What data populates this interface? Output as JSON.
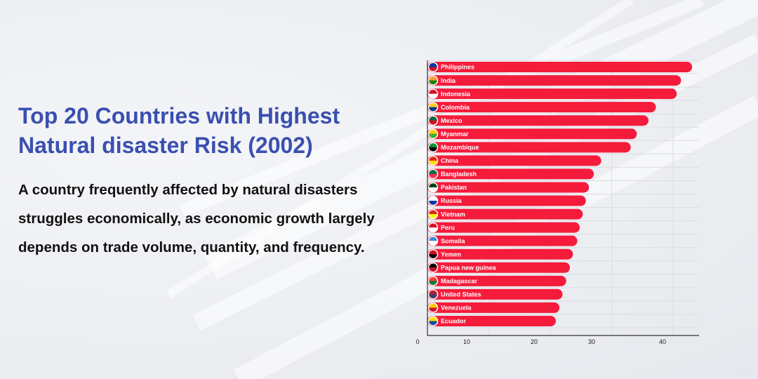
{
  "colors": {
    "title": "#3a4fb0",
    "bar": "#f51b3b",
    "grid": "#dcdde2",
    "axis": "#333333"
  },
  "title": "Top 20 Countries with Highest Natural disaster Risk (2002)",
  "subtitle": "A country frequently affected by natural disasters struggles economically, as economic growth largely depends on trade volume, quantity, and frequency.",
  "chart_data": {
    "type": "bar",
    "orientation": "horizontal",
    "xlim": [
      0,
      45
    ],
    "x_ticks": [
      0,
      10,
      20,
      30,
      40
    ],
    "grid": true,
    "categories": [
      "Philippines",
      "India",
      "Indonesia",
      "Colombia",
      "Mexico",
      "Myanmar",
      "Mozambique",
      "China",
      "Bangladesh",
      "Pakistan",
      "Russia",
      "Vietnam",
      "Peru",
      "Somalia",
      "Yemen",
      "Papua new guinea",
      "Madagascar",
      "United States",
      "Venezuela",
      "Ecuador"
    ],
    "values": [
      43.1,
      41.3,
      40.6,
      37.2,
      36.0,
      34.1,
      33.1,
      28.3,
      27.1,
      26.3,
      25.8,
      25.3,
      24.8,
      24.4,
      23.7,
      23.2,
      22.6,
      22.0,
      21.5,
      20.9
    ],
    "flags": [
      [
        "#0038a8",
        "#ce1126"
      ],
      [
        "#ff9933",
        "#138808"
      ],
      [
        "#ce1126",
        "#ffffff"
      ],
      [
        "#fcd116",
        "#003893"
      ],
      [
        "#006847",
        "#ce1126"
      ],
      [
        "#fecb00",
        "#34b233"
      ],
      [
        "#009739",
        "#000000"
      ],
      [
        "#de2910",
        "#ffde00"
      ],
      [
        "#006a4e",
        "#f42a41"
      ],
      [
        "#01411c",
        "#ffffff"
      ],
      [
        "#ffffff",
        "#0039a6"
      ],
      [
        "#da251d",
        "#ffff00"
      ],
      [
        "#d91023",
        "#ffffff"
      ],
      [
        "#4189dd",
        "#ffffff"
      ],
      [
        "#ce1126",
        "#000000"
      ],
      [
        "#000000",
        "#ce1126"
      ],
      [
        "#fc3d32",
        "#007e3a"
      ],
      [
        "#b22234",
        "#3c3b6e"
      ],
      [
        "#ffcc00",
        "#cf142b"
      ],
      [
        "#ffdd00",
        "#034ea2"
      ]
    ]
  }
}
